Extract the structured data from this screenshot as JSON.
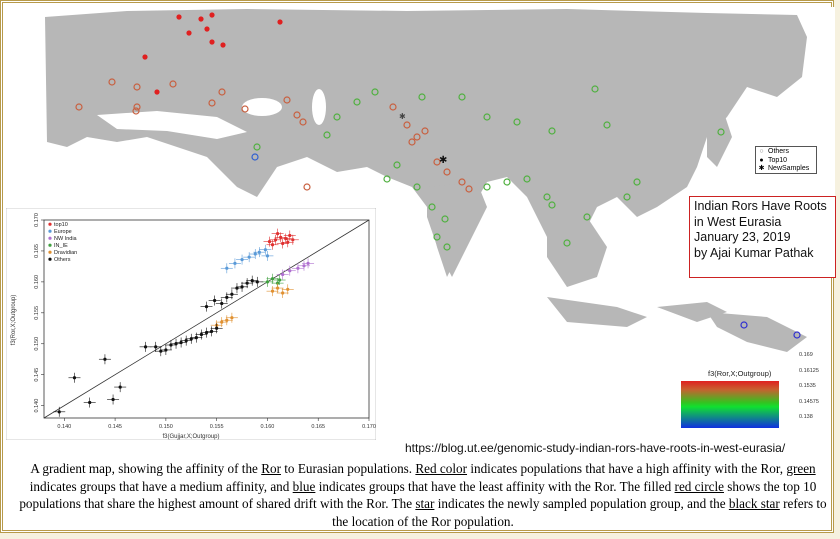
{
  "title_box": {
    "line1": "Indian Rors Have Roots",
    "line2": "in West Eurasia",
    "date": "January 23, 2019",
    "author": "by Ajai Kumar Pathak"
  },
  "map_legend": {
    "items": [
      {
        "symbol": "o",
        "label": "Others"
      },
      {
        "symbol": "●",
        "label": "Top10"
      },
      {
        "symbol": "✱",
        "label": "NewSamples"
      }
    ]
  },
  "gradient_scale": {
    "title": "f3(Ror,X;Outgroup)",
    "ticks": [
      "0.169",
      "0.16125",
      "0.1535",
      "0.14575",
      "0.138"
    ],
    "colors": {
      "high": "#e02020",
      "mid": "#10e030",
      "low": "#1030e0"
    }
  },
  "source_url": "https://blog.ut.ee/genomic-study-indian-rors-have-roots-in-west-eurasia/",
  "caption": {
    "p1": "A gradient map, showing the affinity of the ",
    "ror": "Ror",
    "p2": " to Eurasian populations. ",
    "red_color": "Red color",
    "p3": " indicates populations that have a high affinity with the Ror, ",
    "green": "green",
    "p4": " indicates groups that have a medium affinity, and ",
    "blue": "blue",
    "p5": " indicates groups that have the least affinity with the Ror. The filled ",
    "red_circle": "red circle",
    "p6": " shows the top 10 populations that share the highest amount of shared drift with the Ror. The ",
    "star": "star",
    "p7": " indicates the newly sampled population group, and the ",
    "black_star": "black star",
    "p8": " refers to the location of the Ror population."
  },
  "chart_data": {
    "type": "scatter",
    "xlabel": "f3(Gujjar,X;Outgroup)",
    "ylabel": "f3(Ror,X;Outgroup)",
    "xlim": [
      0.138,
      0.17
    ],
    "ylim": [
      0.138,
      0.17
    ],
    "x_ticks": [
      "0.140",
      "0.145",
      "0.150",
      "0.155",
      "0.160",
      "0.165",
      "0.170"
    ],
    "y_ticks": [
      "0.140",
      "0.145",
      "0.150",
      "0.155",
      "0.160",
      "0.165",
      "0.170"
    ],
    "legend": [
      {
        "name": "top10",
        "color": "#e03030"
      },
      {
        "name": "Europe",
        "color": "#5a9ad8"
      },
      {
        "name": "NW India",
        "color": "#b070d0"
      },
      {
        "name": "IN_IE",
        "color": "#40a040"
      },
      {
        "name": "Dravidian",
        "color": "#e09030"
      },
      {
        "name": "Others",
        "color": "#111111"
      }
    ],
    "series": [
      {
        "name": "top10",
        "x": [
          0.1602,
          0.1608,
          0.1613,
          0.1618,
          0.1622,
          0.1615,
          0.1605,
          0.1625,
          0.161,
          0.162
        ],
        "y": [
          0.1665,
          0.1668,
          0.1672,
          0.167,
          0.1675,
          0.1662,
          0.166,
          0.1668,
          0.1678,
          0.1664
        ]
      },
      {
        "name": "Europe",
        "x": [
          0.156,
          0.1568,
          0.1575,
          0.1582,
          0.1588,
          0.1592,
          0.1598,
          0.16
        ],
        "y": [
          0.1622,
          0.163,
          0.1636,
          0.164,
          0.1645,
          0.1648,
          0.1652,
          0.1642
        ]
      },
      {
        "name": "NW India",
        "x": [
          0.1615,
          0.1622,
          0.163,
          0.1636,
          0.164
        ],
        "y": [
          0.1612,
          0.1618,
          0.1622,
          0.1626,
          0.163
        ]
      },
      {
        "name": "IN_IE",
        "x": [
          0.16,
          0.1605,
          0.161,
          0.1612
        ],
        "y": [
          0.16,
          0.1605,
          0.1598,
          0.1603
        ]
      },
      {
        "name": "Dravidian",
        "x": [
          0.155,
          0.1555,
          0.156,
          0.1565,
          0.1605,
          0.161,
          0.1615,
          0.162
        ],
        "y": [
          0.153,
          0.1535,
          0.1538,
          0.1542,
          0.1585,
          0.159,
          0.1582,
          0.1588
        ]
      },
      {
        "name": "Others",
        "x": [
          0.1395,
          0.141,
          0.1425,
          0.144,
          0.1455,
          0.1448,
          0.148,
          0.149,
          0.1495,
          0.15,
          0.1505,
          0.151,
          0.1515,
          0.152,
          0.1525,
          0.153,
          0.1535,
          0.154,
          0.1545,
          0.155,
          0.154,
          0.1548,
          0.1555,
          0.156,
          0.1565,
          0.157,
          0.1575,
          0.158,
          0.1585,
          0.159
        ],
        "y": [
          0.139,
          0.1445,
          0.1405,
          0.1475,
          0.143,
          0.141,
          0.1495,
          0.1495,
          0.1488,
          0.149,
          0.1498,
          0.15,
          0.1502,
          0.1505,
          0.1508,
          0.151,
          0.1515,
          0.1518,
          0.152,
          0.1525,
          0.156,
          0.157,
          0.1565,
          0.1575,
          0.158,
          0.159,
          0.1592,
          0.1598,
          0.1602,
          0.16
        ]
      }
    ]
  }
}
